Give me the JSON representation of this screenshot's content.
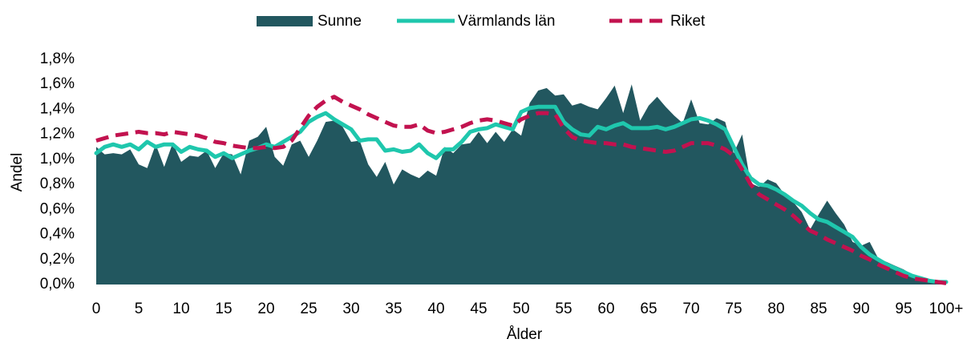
{
  "chart_data": {
    "type": "area-line",
    "x_label": "Ålder",
    "y_label": "Andel",
    "legend": "top",
    "categories": [
      "0",
      null,
      null,
      null,
      null,
      "5",
      null,
      null,
      null,
      null,
      "10",
      null,
      null,
      null,
      null,
      "15",
      null,
      null,
      null,
      null,
      "20",
      null,
      null,
      null,
      null,
      "25",
      null,
      null,
      null,
      null,
      "30",
      null,
      null,
      null,
      null,
      "35",
      null,
      null,
      null,
      null,
      "40",
      null,
      null,
      null,
      null,
      "45",
      null,
      null,
      null,
      null,
      "50",
      null,
      null,
      null,
      null,
      "55",
      null,
      null,
      null,
      null,
      "60",
      null,
      null,
      null,
      null,
      "65",
      null,
      null,
      null,
      null,
      "70",
      null,
      null,
      null,
      null,
      "75",
      null,
      null,
      null,
      null,
      "80",
      null,
      null,
      null,
      null,
      "85",
      null,
      null,
      null,
      null,
      "90",
      null,
      null,
      null,
      null,
      "95",
      null,
      null,
      null,
      null,
      "100+"
    ],
    "ylim": [
      0,
      1.8
    ],
    "yticks": [
      {
        "value": 0,
        "label": "0,0%"
      },
      {
        "value": 0.2,
        "label": "0,2%"
      },
      {
        "value": 0.4,
        "label": "0,4%"
      },
      {
        "value": 0.6,
        "label": "0,6%"
      },
      {
        "value": 0.8,
        "label": "0,8%"
      },
      {
        "value": 1.0,
        "label": "1,0%"
      },
      {
        "value": 1.2,
        "label": "1,2%"
      },
      {
        "value": 1.4,
        "label": "1,4%"
      },
      {
        "value": 1.6,
        "label": "1,6%"
      },
      {
        "value": 1.8,
        "label": "1,8%"
      }
    ],
    "series": [
      {
        "name": "Sunne",
        "kind": "area",
        "color": "#22575f",
        "values": [
          1.1,
          1.04,
          1.05,
          1.04,
          1.08,
          0.96,
          0.93,
          1.12,
          0.94,
          1.13,
          0.98,
          1.03,
          1.02,
          1.07,
          0.93,
          1.05,
          1.04,
          0.88,
          1.15,
          1.18,
          1.26,
          1.02,
          0.95,
          1.12,
          1.15,
          1.02,
          1.15,
          1.3,
          1.31,
          1.26,
          1.14,
          1.15,
          0.96,
          0.86,
          0.98,
          0.8,
          0.92,
          0.88,
          0.85,
          0.91,
          0.87,
          1.1,
          1.05,
          1.12,
          1.13,
          1.22,
          1.13,
          1.22,
          1.14,
          1.24,
          1.19,
          1.45,
          1.55,
          1.57,
          1.51,
          1.52,
          1.43,
          1.45,
          1.42,
          1.4,
          1.49,
          1.59,
          1.37,
          1.6,
          1.31,
          1.43,
          1.5,
          1.42,
          1.35,
          1.29,
          1.48,
          1.29,
          1.28,
          1.33,
          1.3,
          1.05,
          1.2,
          0.81,
          0.78,
          0.84,
          0.81,
          0.72,
          0.66,
          0.58,
          0.44,
          0.56,
          0.67,
          0.57,
          0.48,
          0.34,
          0.31,
          0.34,
          0.21,
          0.18,
          0.15,
          0.12,
          0.08,
          0.06,
          0.04,
          0.03,
          0.02
        ]
      },
      {
        "name": "Värmlands län",
        "kind": "line",
        "color": "#1fc7ad",
        "values": [
          1.05,
          1.1,
          1.12,
          1.1,
          1.12,
          1.08,
          1.14,
          1.1,
          1.12,
          1.12,
          1.06,
          1.1,
          1.08,
          1.07,
          1.02,
          1.05,
          1.01,
          1.04,
          1.07,
          1.09,
          1.12,
          1.1,
          1.14,
          1.18,
          1.22,
          1.3,
          1.34,
          1.37,
          1.32,
          1.28,
          1.24,
          1.15,
          1.16,
          1.16,
          1.07,
          1.08,
          1.06,
          1.07,
          1.12,
          1.05,
          1.01,
          1.08,
          1.08,
          1.14,
          1.22,
          1.24,
          1.25,
          1.28,
          1.26,
          1.24,
          1.38,
          1.41,
          1.42,
          1.42,
          1.42,
          1.3,
          1.24,
          1.2,
          1.19,
          1.26,
          1.24,
          1.27,
          1.29,
          1.25,
          1.25,
          1.25,
          1.26,
          1.24,
          1.26,
          1.29,
          1.32,
          1.33,
          1.31,
          1.28,
          1.24,
          1.1,
          0.96,
          0.85,
          0.8,
          0.79,
          0.76,
          0.72,
          0.67,
          0.63,
          0.57,
          0.52,
          0.5,
          0.46,
          0.42,
          0.38,
          0.3,
          0.24,
          0.2,
          0.16,
          0.13,
          0.1,
          0.07,
          0.05,
          0.03,
          0.02,
          0.02
        ]
      },
      {
        "name": "Riket",
        "kind": "dashed",
        "color": "#c2124f",
        "values": [
          1.15,
          1.17,
          1.19,
          1.2,
          1.21,
          1.22,
          1.21,
          1.21,
          1.2,
          1.22,
          1.21,
          1.2,
          1.19,
          1.17,
          1.14,
          1.13,
          1.11,
          1.1,
          1.09,
          1.09,
          1.1,
          1.09,
          1.1,
          1.15,
          1.25,
          1.35,
          1.42,
          1.47,
          1.5,
          1.46,
          1.43,
          1.4,
          1.36,
          1.33,
          1.3,
          1.27,
          1.26,
          1.26,
          1.28,
          1.23,
          1.21,
          1.22,
          1.24,
          1.26,
          1.29,
          1.31,
          1.32,
          1.31,
          1.29,
          1.27,
          1.32,
          1.35,
          1.37,
          1.37,
          1.36,
          1.25,
          1.18,
          1.15,
          1.14,
          1.13,
          1.13,
          1.12,
          1.12,
          1.1,
          1.09,
          1.08,
          1.07,
          1.06,
          1.07,
          1.1,
          1.13,
          1.13,
          1.13,
          1.11,
          1.08,
          1.03,
          0.92,
          0.8,
          0.72,
          0.68,
          0.64,
          0.6,
          0.55,
          0.49,
          0.43,
          0.4,
          0.36,
          0.33,
          0.3,
          0.27,
          0.23,
          0.2,
          0.16,
          0.13,
          0.1,
          0.07,
          0.05,
          0.04,
          0.03,
          0.02,
          0.01
        ]
      }
    ]
  }
}
